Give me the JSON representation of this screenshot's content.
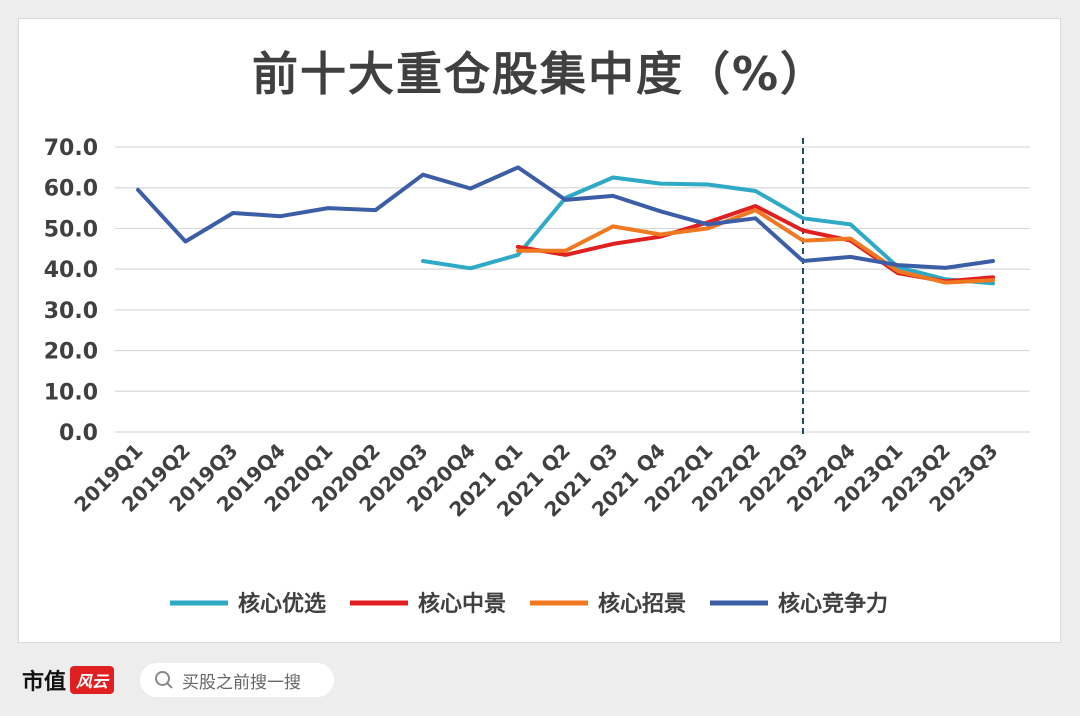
{
  "chart_data": {
    "type": "line",
    "title": "前十大重仓股集中度（%）",
    "categories": [
      "2019Q1",
      "2019Q2",
      "2019Q3",
      "2019Q4",
      "2020Q1",
      "2020Q2",
      "2020Q3",
      "2020Q4",
      "2021 Q1",
      "2021 Q2",
      "2021 Q3",
      "2021 Q4",
      "2022Q1",
      "2022Q2",
      "2022Q3",
      "2022Q4",
      "2023Q1",
      "2023Q2",
      "2023Q3"
    ],
    "ylim": [
      0,
      70
    ],
    "yticks": [
      "70.0",
      "60.0",
      "50.0",
      "40.0",
      "30.0",
      "20.0",
      "10.0",
      "0.0"
    ],
    "grid": true,
    "legend_position": "bottom",
    "reference_line": {
      "category": "2022Q3",
      "style": "dashed"
    },
    "series": [
      {
        "name": "核心优选",
        "color": "#2eaac6",
        "values": [
          null,
          null,
          null,
          null,
          null,
          null,
          42.0,
          40.2,
          43.5,
          57.5,
          62.5,
          61.0,
          60.8,
          59.2,
          52.5,
          51.0,
          40.5,
          37.5,
          36.5
        ]
      },
      {
        "name": "核心中景",
        "color": "#e02020",
        "values": [
          null,
          null,
          null,
          null,
          null,
          null,
          null,
          null,
          45.5,
          43.5,
          46.2,
          48.0,
          51.5,
          55.5,
          49.5,
          47.0,
          39.0,
          37.0,
          38.0
        ]
      },
      {
        "name": "核心招景",
        "color": "#f07820",
        "values": [
          null,
          null,
          null,
          null,
          null,
          null,
          null,
          null,
          44.5,
          44.5,
          50.5,
          48.5,
          50.0,
          54.5,
          47.0,
          47.5,
          39.5,
          36.7,
          37.3
        ]
      },
      {
        "name": "核心竞争力",
        "color": "#3b5ea6",
        "values": [
          59.5,
          46.8,
          53.8,
          53.0,
          55.0,
          54.5,
          63.2,
          59.8,
          65.0,
          57.0,
          58.0,
          54.2,
          51.0,
          52.5,
          42.0,
          43.0,
          41.0,
          40.3,
          42.0
        ]
      }
    ]
  },
  "footer": {
    "brand": "市值",
    "brand_seal": "风云",
    "search_text": "买股之前搜一搜"
  }
}
